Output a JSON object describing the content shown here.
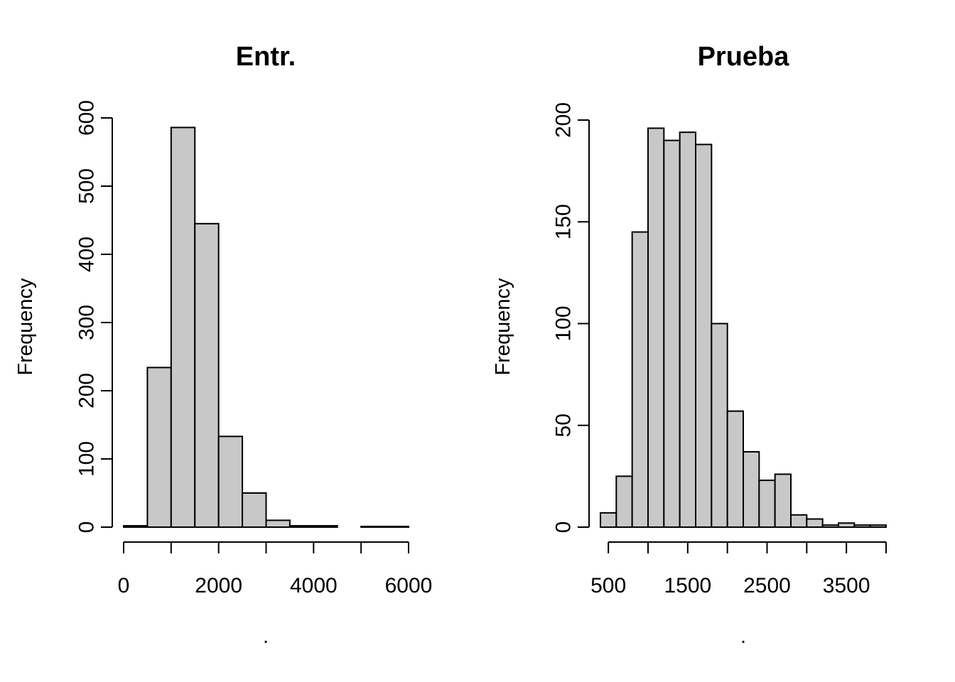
{
  "chart_data": [
    {
      "type": "bar",
      "title": "Entr.",
      "xlabel": ".",
      "ylabel": "Frequency",
      "xlim": [
        0,
        6000
      ],
      "ylim": [
        0,
        600
      ],
      "xticks": [
        0,
        2000,
        4000,
        6000
      ],
      "xtick_labels": [
        "0",
        "2000",
        "4000",
        "6000"
      ],
      "xtick_marks": [
        0,
        1000,
        2000,
        3000,
        4000,
        5000,
        6000
      ],
      "yticks": [
        0,
        100,
        200,
        300,
        400,
        500,
        600
      ],
      "ytick_labels": [
        "0",
        "100",
        "200",
        "300",
        "400",
        "500",
        "600"
      ],
      "bin_edges": [
        0,
        500,
        1000,
        1500,
        2000,
        2500,
        3000,
        3500,
        4000,
        4500,
        5000,
        5500,
        6000
      ],
      "values": [
        2,
        234,
        586,
        445,
        133,
        50,
        10,
        2,
        2,
        0,
        1,
        1
      ],
      "bar_color": "#c8c8c8",
      "grid": false
    },
    {
      "type": "bar",
      "title": "Prueba",
      "xlabel": ".",
      "ylabel": "Frequency",
      "xlim": [
        400,
        4000
      ],
      "ylim": [
        0,
        200
      ],
      "xticks": [
        500,
        1500,
        2500,
        3500
      ],
      "xtick_labels": [
        "500",
        "1500",
        "2500",
        "3500"
      ],
      "xtick_marks": [
        500,
        1000,
        1500,
        2000,
        2500,
        3000,
        3500,
        4000
      ],
      "yticks": [
        0,
        50,
        100,
        150,
        200
      ],
      "ytick_labels": [
        "0",
        "50",
        "100",
        "150",
        "200"
      ],
      "bin_edges": [
        400,
        600,
        800,
        1000,
        1200,
        1400,
        1600,
        1800,
        2000,
        2200,
        2400,
        2600,
        2800,
        3000,
        3200,
        3400,
        3600,
        3800,
        4000
      ],
      "values": [
        7,
        25,
        145,
        196,
        190,
        194,
        188,
        100,
        57,
        37,
        23,
        26,
        6,
        4,
        1,
        2,
        1,
        1
      ],
      "bar_color": "#c8c8c8",
      "grid": false
    }
  ]
}
